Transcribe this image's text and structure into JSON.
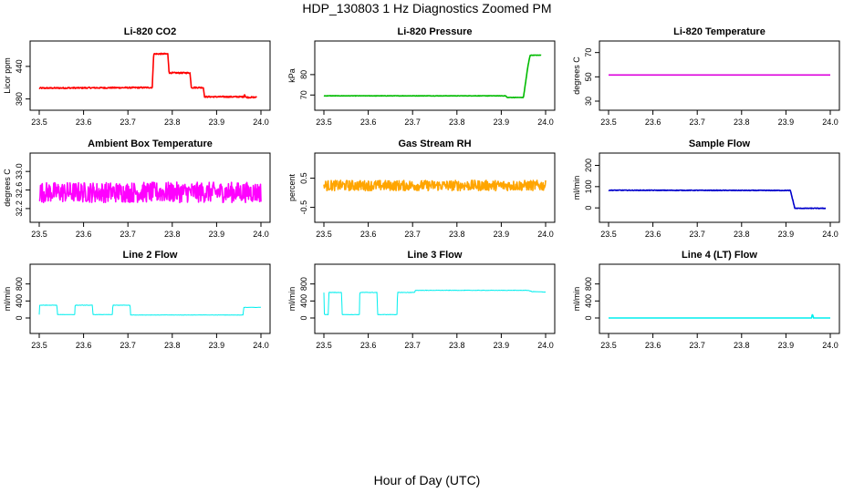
{
  "page": {
    "title": "HDP_130803  1 Hz Diagnostics Zoomed PM",
    "xcaption": "Hour of Day (UTC)"
  },
  "chart_data": [
    {
      "type": "line",
      "title": "Li-820 CO2",
      "ylabel": "Licor ppm",
      "xlim": [
        23.5,
        24.0
      ],
      "ylim": [
        376,
        470
      ],
      "xticks": [
        23.5,
        23.6,
        23.7,
        23.8,
        23.9,
        24.0
      ],
      "xticklabels": [
        "23.5",
        "23.6",
        "23.7",
        "23.8",
        "23.9",
        "24.0"
      ],
      "yticks": [
        380,
        440
      ],
      "yticklabels": [
        "380",
        "440"
      ],
      "color": "#ff0000",
      "noise": 1.2,
      "series": [
        {
          "x": [
            23.5,
            23.755,
            23.758,
            23.79,
            23.793,
            23.84,
            23.843,
            23.87,
            23.873,
            23.962,
            23.963,
            23.965,
            23.966,
            23.99
          ],
          "y": [
            400,
            401,
            463,
            463,
            428,
            428,
            401,
            401,
            384,
            384,
            390,
            384,
            383,
            383
          ]
        }
      ]
    },
    {
      "type": "line",
      "title": "Li-820 Pressure",
      "ylabel": "kPa",
      "xlim": [
        23.5,
        24.0
      ],
      "ylim": [
        67,
        92
      ],
      "xticks": [
        23.5,
        23.6,
        23.7,
        23.8,
        23.9,
        24.0
      ],
      "xticklabels": [
        "23.5",
        "23.6",
        "23.7",
        "23.8",
        "23.9",
        "24.0"
      ],
      "yticks": [
        70,
        80
      ],
      "yticklabels": [
        "70",
        "80"
      ],
      "color": "#00bb00",
      "noise": 0.1,
      "series": [
        {
          "x": [
            23.5,
            23.91,
            23.913,
            23.95,
            23.96,
            23.965,
            23.99
          ],
          "y": [
            69.6,
            69.6,
            68.8,
            68.8,
            84,
            89.5,
            89.5
          ]
        }
      ]
    },
    {
      "type": "line",
      "title": "Li-820 Temperature",
      "ylabel": "degrees C",
      "xlim": [
        23.5,
        24.0
      ],
      "ylim": [
        30,
        72
      ],
      "xticks": [
        23.5,
        23.6,
        23.7,
        23.8,
        23.9,
        24.0
      ],
      "xticklabels": [
        "23.5",
        "23.6",
        "23.7",
        "23.8",
        "23.9",
        "24.0"
      ],
      "yticks": [
        30,
        50,
        70
      ],
      "yticklabels": [
        "30",
        "50",
        "70"
      ],
      "color": "#dd00dd",
      "noise": 0,
      "series": [
        {
          "x": [
            23.5,
            24.0
          ],
          "y": [
            51.5,
            51.5
          ]
        }
      ]
    },
    {
      "type": "line",
      "title": "Ambient Box Temperature",
      "ylabel": "degrees C",
      "xlim": [
        23.5,
        24.0
      ],
      "ylim": [
        32.1,
        33.2
      ],
      "xticks": [
        23.5,
        23.6,
        23.7,
        23.8,
        23.9,
        24.0
      ],
      "xticklabels": [
        "23.5",
        "23.6",
        "23.7",
        "23.8",
        "23.9",
        "24.0"
      ],
      "yticks": [
        32.2,
        32.6,
        33.0
      ],
      "yticklabels": [
        "32.2",
        "32.6",
        "33.0"
      ],
      "color": "#ff00ff",
      "noise": 0.22,
      "series": [
        {
          "x": [
            23.5,
            24.0
          ],
          "y": [
            32.55,
            32.55
          ]
        }
      ]
    },
    {
      "type": "line",
      "title": "Gas Stream RH",
      "ylabel": "percent",
      "xlim": [
        23.5,
        24.0
      ],
      "ylim": [
        -0.7,
        1.05
      ],
      "xticks": [
        23.5,
        23.6,
        23.7,
        23.8,
        23.9,
        24.0
      ],
      "xticklabels": [
        "23.5",
        "23.6",
        "23.7",
        "23.8",
        "23.9",
        "24.0"
      ],
      "yticks": [
        -0.5,
        0.5
      ],
      "yticklabels": [
        "-0.5",
        "0.5"
      ],
      "color": "#ffa500",
      "noise": 0.18,
      "series": [
        {
          "x": [
            23.5,
            24.0
          ],
          "y": [
            0.25,
            0.25
          ]
        }
      ]
    },
    {
      "type": "line",
      "title": "Sample Flow",
      "ylabel": "ml/min",
      "xlim": [
        23.5,
        24.0
      ],
      "ylim": [
        -25,
        215
      ],
      "xticks": [
        23.5,
        23.6,
        23.7,
        23.8,
        23.9,
        24.0
      ],
      "xticklabels": [
        "23.5",
        "23.6",
        "23.7",
        "23.8",
        "23.9",
        "24.0"
      ],
      "yticks": [
        0,
        100,
        200
      ],
      "yticklabels": [
        "0",
        "100",
        "200"
      ],
      "color": "#0000cc",
      "noise": 1.5,
      "series": [
        {
          "x": [
            23.5,
            23.91,
            23.92,
            23.99
          ],
          "y": [
            83,
            82,
            -2,
            -2
          ]
        }
      ]
    },
    {
      "type": "line",
      "title": "Line 2 Flow",
      "ylabel": "ml/min",
      "xlim": [
        23.5,
        24.0
      ],
      "ylim": [
        -150,
        1050
      ],
      "xticks": [
        23.5,
        23.6,
        23.7,
        23.8,
        23.9,
        24.0
      ],
      "xticklabels": [
        "23.5",
        "23.6",
        "23.7",
        "23.8",
        "23.9",
        "24.0"
      ],
      "yticks": [
        0,
        400,
        800
      ],
      "yticklabels": [
        "0",
        "400",
        "800"
      ],
      "color": "#00eeee",
      "noise": 4,
      "series": [
        {
          "x": [
            23.5,
            23.5,
            23.54,
            23.541,
            23.58,
            23.581,
            23.62,
            23.621,
            23.665,
            23.666,
            23.705,
            23.706,
            23.96,
            23.961,
            24.0
          ],
          "y": [
            80,
            300,
            300,
            80,
            80,
            300,
            300,
            80,
            80,
            300,
            300,
            70,
            70,
            250,
            250
          ]
        }
      ]
    },
    {
      "type": "line",
      "title": "Line 3 Flow",
      "ylabel": "ml/min",
      "xlim": [
        23.5,
        24.0
      ],
      "ylim": [
        -150,
        1050
      ],
      "xticks": [
        23.5,
        23.6,
        23.7,
        23.8,
        23.9,
        24.0
      ],
      "xticklabels": [
        "23.5",
        "23.6",
        "23.7",
        "23.8",
        "23.9",
        "24.0"
      ],
      "yticks": [
        0,
        400,
        800
      ],
      "yticklabels": [
        "0",
        "400",
        "800"
      ],
      "color": "#00eeee",
      "noise": 5,
      "series": [
        {
          "x": [
            23.5,
            23.501,
            23.51,
            23.511,
            23.54,
            23.541,
            23.58,
            23.581,
            23.62,
            23.621,
            23.665,
            23.666,
            23.705,
            23.706,
            23.96,
            23.97,
            24.0
          ],
          "y": [
            600,
            80,
            80,
            600,
            600,
            80,
            80,
            600,
            600,
            80,
            80,
            600,
            600,
            650,
            650,
            620,
            610
          ]
        }
      ]
    },
    {
      "type": "line",
      "title": "Line 4 (LT) Flow",
      "ylabel": "ml/min",
      "xlim": [
        23.5,
        24.0
      ],
      "ylim": [
        -150,
        1050
      ],
      "xticks": [
        23.5,
        23.6,
        23.7,
        23.8,
        23.9,
        24.0
      ],
      "xticklabels": [
        "23.5",
        "23.6",
        "23.7",
        "23.8",
        "23.9",
        "24.0"
      ],
      "yticks": [
        0,
        400,
        800
      ],
      "yticklabels": [
        "0",
        "400",
        "800"
      ],
      "color": "#00eeee",
      "noise": 1,
      "series": [
        {
          "x": [
            23.5,
            23.958,
            23.959,
            23.961,
            23.962,
            24.0
          ],
          "y": [
            0,
            0,
            80,
            60,
            0,
            0
          ]
        }
      ]
    }
  ]
}
